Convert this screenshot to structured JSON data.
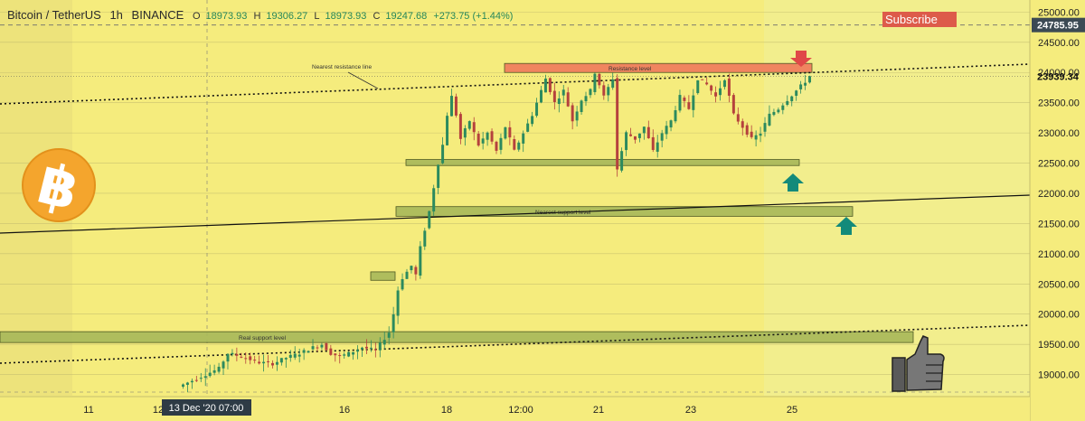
{
  "header": {
    "symbol": "Bitcoin / TetherUS",
    "interval": "1h",
    "exchange": "BINANCE",
    "open_label": "O",
    "open": "18973.93",
    "high_label": "H",
    "high": "19306.27",
    "low_label": "L",
    "low": "18973.93",
    "close_label": "C",
    "close": "19247.68",
    "change": "+273.75 (+1.44%)"
  },
  "subscribe_label": "Subscribe",
  "colors": {
    "background": "#f5ec7d",
    "up": "#2c8a5e",
    "down": "#b5413d",
    "zone_green": "#a8b85a",
    "zone_red": "#f07a5c",
    "arrow_red": "#e04848",
    "arrow_teal": "#138a7a",
    "price_tag": "#3c4a54",
    "crosshair_tag": "#2e3b45"
  },
  "icons": [
    "bitcoin-logo-icon",
    "thumbs-up-icon",
    "down-arrow-icon",
    "up-arrow-icon"
  ],
  "chart_data": {
    "type": "candlestick",
    "symbol": "Bitcoin / TetherUS",
    "interval": "1h",
    "y_axis_position": "right",
    "ylim": [
      18650,
      25200
    ],
    "y_ticks": [
      25000,
      24500,
      24000,
      23500,
      23000,
      22500,
      22000,
      21500,
      21000,
      20500,
      20000,
      19500,
      19000
    ],
    "y_tick_labels": [
      "25000.00",
      "24500.00",
      "24000.00",
      "23500.00",
      "23000.00",
      "22500.00",
      "22000.00",
      "21500.00",
      "21000.00",
      "20500.00",
      "20000.00",
      "19500.00",
      "19000.00"
    ],
    "x_tick_labels": [
      "11",
      "12",
      "16",
      "18",
      "12:00",
      "21",
      "23",
      "25"
    ],
    "crosshair_x_label": "13 Dec '20   07:00",
    "last_price": "23939.34",
    "marked_price": "24785.95",
    "grid": true,
    "annotations": [
      {
        "text": "Nearest resistance line",
        "kind": "trendline"
      },
      {
        "text": "Resistance level",
        "kind": "zone",
        "y_low": 24000,
        "y_high": 24150
      },
      {
        "text": "Nearest support level",
        "kind": "zone",
        "y_low": 21620,
        "y_high": 21780
      },
      {
        "text": "Real support level",
        "kind": "zone",
        "y_low": 19530,
        "y_high": 19710
      },
      {
        "text": "",
        "kind": "zone",
        "y_low": 22460,
        "y_high": 22560
      },
      {
        "text": "",
        "kind": "zone",
        "y_low": 20560,
        "y_high": 20700
      }
    ],
    "price_path": [
      [
        0,
        18800
      ],
      [
        3,
        18900
      ],
      [
        6,
        19000
      ],
      [
        9,
        19100
      ],
      [
        11,
        19350
      ],
      [
        14,
        19300
      ],
      [
        18,
        19200
      ],
      [
        21,
        19180
      ],
      [
        24,
        19280
      ],
      [
        27,
        19350
      ],
      [
        30,
        19450
      ],
      [
        32,
        19500
      ],
      [
        34,
        19350
      ],
      [
        36,
        19300
      ],
      [
        38,
        19350
      ],
      [
        41,
        19450
      ],
      [
        44,
        19400
      ],
      [
        45,
        19500
      ],
      [
        47,
        19700
      ],
      [
        48,
        20000
      ],
      [
        49,
        20400
      ],
      [
        50,
        20600
      ],
      [
        51,
        20700
      ],
      [
        52,
        20800
      ],
      [
        53,
        20650
      ],
      [
        54,
        21100
      ],
      [
        55,
        21400
      ],
      [
        56,
        21700
      ],
      [
        57,
        22100
      ],
      [
        58,
        22500
      ],
      [
        59,
        22800
      ],
      [
        60,
        23300
      ],
      [
        61,
        23600
      ],
      [
        62,
        23300
      ],
      [
        63,
        22900
      ],
      [
        65,
        23200
      ],
      [
        67,
        22800
      ],
      [
        69,
        23000
      ],
      [
        71,
        22700
      ],
      [
        73,
        23100
      ],
      [
        75,
        22700
      ],
      [
        77,
        23000
      ],
      [
        79,
        23300
      ],
      [
        82,
        23900
      ],
      [
        84,
        23500
      ],
      [
        86,
        23700
      ],
      [
        88,
        23200
      ],
      [
        90,
        23550
      ],
      [
        92,
        23700
      ],
      [
        93,
        24000
      ],
      [
        95,
        23600
      ],
      [
        97,
        23900
      ],
      [
        98,
        22400
      ],
      [
        100,
        23000
      ],
      [
        102,
        22900
      ],
      [
        104,
        23100
      ],
      [
        106,
        22700
      ],
      [
        108,
        23000
      ],
      [
        110,
        23200
      ],
      [
        112,
        23600
      ],
      [
        114,
        23400
      ],
      [
        116,
        23900
      ],
      [
        118,
        23800
      ],
      [
        120,
        23600
      ],
      [
        122,
        23900
      ],
      [
        124,
        23300
      ],
      [
        126,
        23100
      ],
      [
        128,
        22900
      ],
      [
        130,
        23000
      ],
      [
        132,
        23300
      ],
      [
        134,
        23400
      ],
      [
        136,
        23550
      ],
      [
        138,
        23700
      ],
      [
        140,
        23850
      ],
      [
        141,
        23940
      ]
    ]
  }
}
